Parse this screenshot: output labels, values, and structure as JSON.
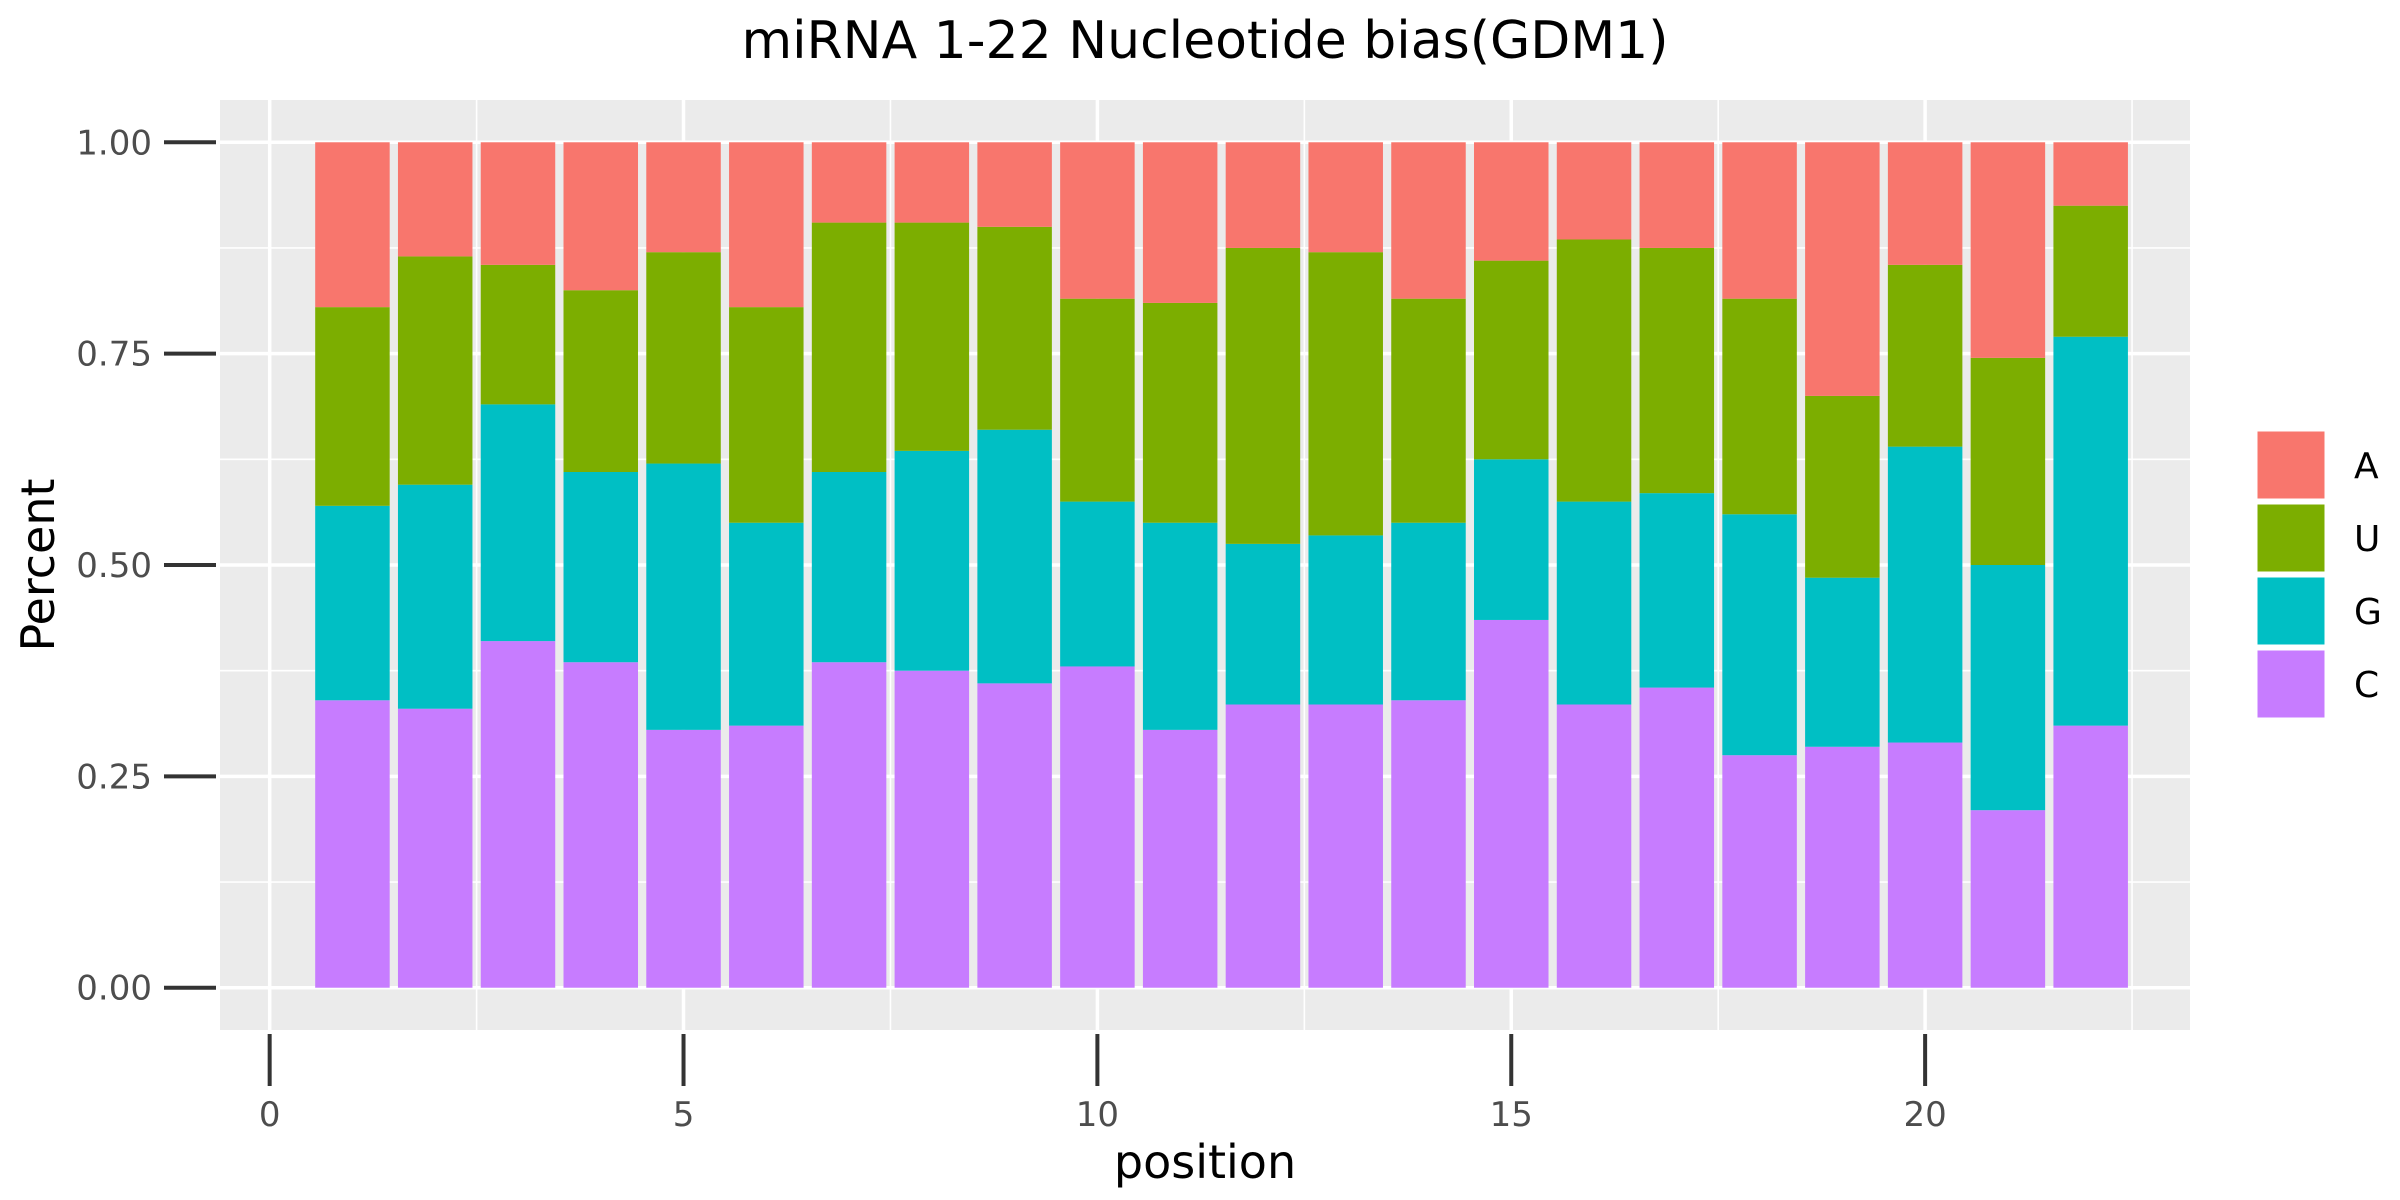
{
  "chart_data": {
    "type": "bar",
    "stacked": true,
    "title": "miRNA 1-22 Nucleotide bias(GDM1)",
    "xlabel": "position",
    "ylabel": "Percent",
    "xlim": [
      -0.6,
      23.2
    ],
    "ylim": [
      -0.05,
      1.05
    ],
    "xticks": [
      0,
      5,
      10,
      15,
      20
    ],
    "xtick_labels": [
      "0",
      "5",
      "10",
      "15",
      "20"
    ],
    "yticks": [
      0,
      0.25,
      0.5,
      0.75,
      1.0
    ],
    "ytick_labels": [
      "0.00",
      "0.25",
      "0.50",
      "0.75",
      "1.00"
    ],
    "grid": true,
    "legend_position": "right",
    "x": [
      1,
      2,
      3,
      4,
      5,
      6,
      7,
      8,
      9,
      10,
      11,
      12,
      13,
      14,
      15,
      16,
      17,
      18,
      19,
      20,
      21,
      22
    ],
    "series": [
      {
        "name": "C",
        "color": "#C77CFF",
        "values": [
          0.34,
          0.33,
          0.41,
          0.385,
          0.305,
          0.31,
          0.385,
          0.375,
          0.36,
          0.38,
          0.305,
          0.335,
          0.335,
          0.34,
          0.435,
          0.335,
          0.355,
          0.275,
          0.285,
          0.29,
          0.21,
          0.31
        ]
      },
      {
        "name": "G",
        "color": "#00BFC4",
        "values": [
          0.23,
          0.265,
          0.28,
          0.225,
          0.315,
          0.24,
          0.225,
          0.26,
          0.3,
          0.195,
          0.245,
          0.19,
          0.2,
          0.21,
          0.19,
          0.24,
          0.23,
          0.285,
          0.2,
          0.35,
          0.29,
          0.46
        ]
      },
      {
        "name": "U",
        "color": "#7CAE00",
        "values": [
          0.235,
          0.27,
          0.165,
          0.215,
          0.25,
          0.255,
          0.295,
          0.27,
          0.24,
          0.24,
          0.26,
          0.35,
          0.335,
          0.265,
          0.235,
          0.31,
          0.29,
          0.255,
          0.215,
          0.215,
          0.245,
          0.155
        ]
      },
      {
        "name": "A",
        "color": "#F8766D",
        "values": [
          0.195,
          0.135,
          0.145,
          0.175,
          0.13,
          0.195,
          0.095,
          0.095,
          0.1,
          0.185,
          0.19,
          0.125,
          0.13,
          0.185,
          0.14,
          0.115,
          0.125,
          0.185,
          0.3,
          0.145,
          0.255,
          0.075
        ]
      }
    ],
    "legend_order": [
      "A",
      "U",
      "G",
      "C"
    ],
    "panel_background": "#EBEBEB",
    "grid_color": "#FFFFFF"
  }
}
